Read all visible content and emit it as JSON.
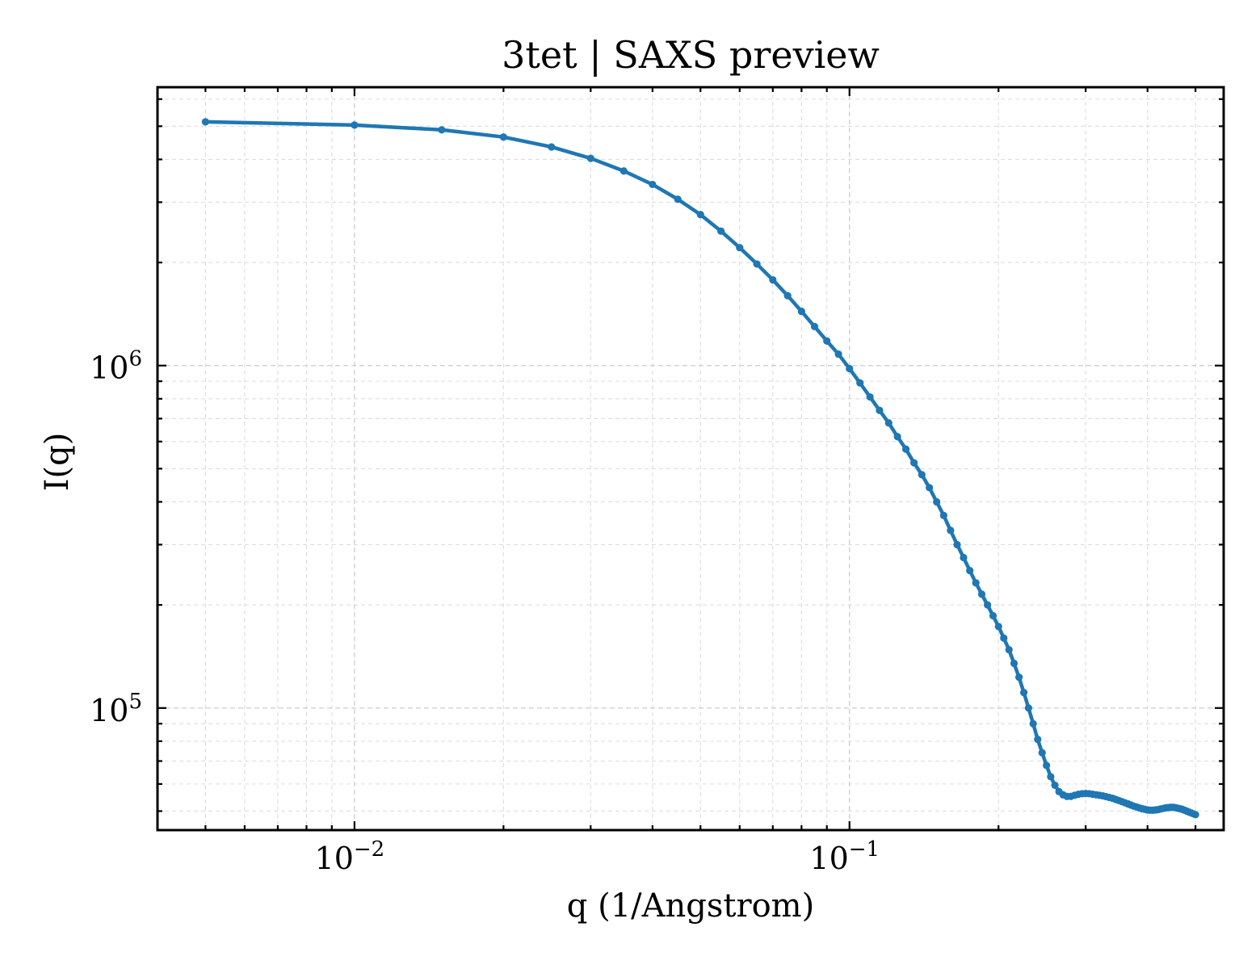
{
  "chart_data": {
    "type": "line",
    "title": "3tet | SAXS preview",
    "xlabel": "q (1/Angstrom)",
    "ylabel": "I(q)",
    "xscale": "log",
    "yscale": "log",
    "xlim": [
      0.004,
      0.57
    ],
    "ylim": [
      44000,
      6500000
    ],
    "grid": true,
    "legend": "none",
    "x_ticks": [
      {
        "value": 0.01,
        "base": "10",
        "exp": "−2"
      },
      {
        "value": 0.1,
        "base": "10",
        "exp": "−1"
      }
    ],
    "y_ticks": [
      {
        "value": 100000,
        "base": "10",
        "exp": "5"
      },
      {
        "value": 1000000,
        "base": "10",
        "exp": "6"
      }
    ],
    "series": [
      {
        "color": "#1f77b4",
        "x": [
          0.005,
          0.01,
          0.015,
          0.02,
          0.025,
          0.03,
          0.035,
          0.04,
          0.045,
          0.05,
          0.055,
          0.06,
          0.065,
          0.07,
          0.075,
          0.08,
          0.085,
          0.09,
          0.095,
          0.1,
          0.105,
          0.11,
          0.115,
          0.12,
          0.125,
          0.13,
          0.135,
          0.14,
          0.145,
          0.15,
          0.155,
          0.16,
          0.165,
          0.17,
          0.175,
          0.18,
          0.185,
          0.19,
          0.195,
          0.2,
          0.205,
          0.21,
          0.215,
          0.22,
          0.225,
          0.23,
          0.235,
          0.24,
          0.245,
          0.25,
          0.255,
          0.26,
          0.265,
          0.27,
          0.275,
          0.28,
          0.285,
          0.29,
          0.295,
          0.3,
          0.305,
          0.31,
          0.315,
          0.32,
          0.325,
          0.33,
          0.335,
          0.34,
          0.345,
          0.35,
          0.355,
          0.36,
          0.365,
          0.37,
          0.375,
          0.38,
          0.385,
          0.39,
          0.395,
          0.4,
          0.405,
          0.41,
          0.415,
          0.42,
          0.425,
          0.43,
          0.435,
          0.44,
          0.445,
          0.45,
          0.455,
          0.46,
          0.465,
          0.47,
          0.475,
          0.48,
          0.485,
          0.49,
          0.495,
          0.5
        ],
        "y": [
          5150000,
          5040000,
          4880000,
          4650000,
          4350000,
          4030000,
          3700000,
          3380000,
          3060000,
          2760000,
          2470000,
          2210000,
          1980000,
          1780000,
          1600000,
          1440000,
          1300000,
          1180000,
          1080000,
          980000,
          890000,
          810000,
          740000,
          680000,
          620000,
          570000,
          520000,
          480000,
          440000,
          400000,
          365000,
          330000,
          300000,
          275000,
          252000,
          232000,
          215000,
          200000,
          186000,
          173000,
          160000,
          148000,
          135000,
          123000,
          111000,
          100000,
          90000,
          81000,
          74000,
          68000,
          63000,
          59500,
          57000,
          55800,
          55200,
          55200,
          55600,
          56000,
          56200,
          56300,
          56200,
          56000,
          55800,
          55600,
          55400,
          55100,
          54800,
          54500,
          54100,
          53700,
          53300,
          52900,
          52500,
          52100,
          51700,
          51400,
          51100,
          50800,
          50600,
          50400,
          50300,
          50300,
          50400,
          50500,
          50700,
          50900,
          51100,
          51200,
          51300,
          51300,
          51200,
          51000,
          50800,
          50600,
          50300,
          50000,
          49700,
          49400,
          49100,
          48800
        ]
      }
    ]
  }
}
